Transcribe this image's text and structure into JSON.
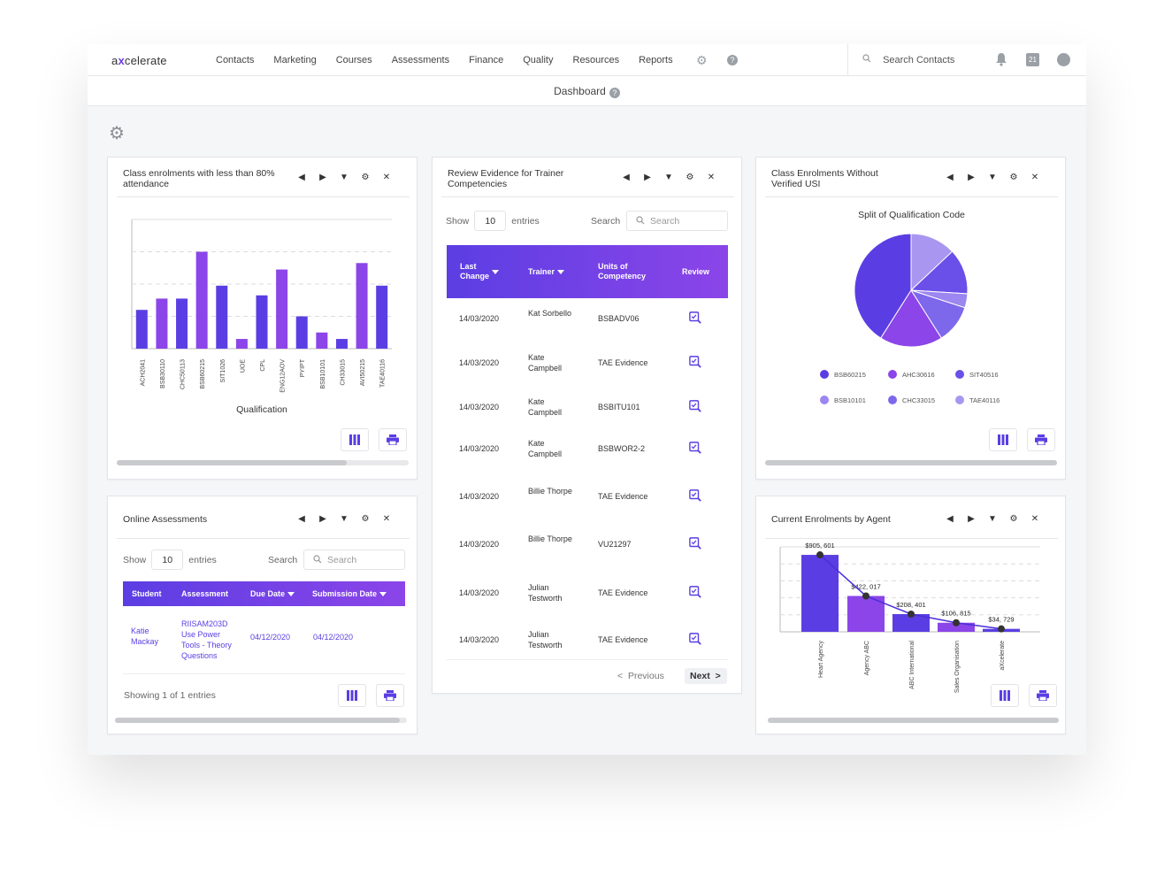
{
  "brand": {
    "logo_pre": "a",
    "logo_x": "x",
    "logo_post": "celerate"
  },
  "nav": [
    "Contacts",
    "Marketing",
    "Courses",
    "Assessments",
    "Finance",
    "Quality",
    "Resources",
    "Reports"
  ],
  "top_search_placeholder": "Search Contacts",
  "calendar_day": "21",
  "page_title": "Dashboard",
  "colors": {
    "accent": "#5b3ee3",
    "accent2": "#8b45e8",
    "bg": "#f5f6f8"
  },
  "widgets": {
    "attendance": {
      "title": "Class enrolments with less than 80% attendance",
      "xlabel": "Qualification"
    },
    "trainer": {
      "title": "Review Evidence for Trainer Competencies",
      "show_label": "Show",
      "entries_value": "10",
      "entries_label": "entries",
      "search_label": "Search",
      "search_placeholder": "Search",
      "headers": {
        "last_change": "Last Change",
        "trainer": "Trainer",
        "units": "Units of Competency",
        "review": "Review"
      },
      "rows": [
        {
          "date": "14/03/2020",
          "trainer": "Kat Sorbello",
          "unit": "BSBADV06"
        },
        {
          "date": "14/03/2020",
          "trainer": "Kate Campbell",
          "unit": "TAE Evidence"
        },
        {
          "date": "14/03/2020",
          "trainer": "Kate Campbell",
          "unit": "BSBITU101"
        },
        {
          "date": "14/03/2020",
          "trainer": "Kate Campbell",
          "unit": "BSBWOR2-2"
        },
        {
          "date": "14/03/2020",
          "trainer": "Billie Thorpe",
          "unit": "TAE Evidence"
        },
        {
          "date": "14/03/2020",
          "trainer": "Billie Thorpe",
          "unit": "VU21297"
        },
        {
          "date": "14/03/2020",
          "trainer": "Julian Testworth",
          "unit": "TAE Evidence"
        },
        {
          "date": "14/03/2020",
          "trainer": "Julian Testworth",
          "unit": "TAE Evidence"
        }
      ],
      "prev_label": "Previous",
      "next_label": "Next"
    },
    "usi": {
      "title": "Class Enrolments Without Verified USI",
      "chart_title": "Split of Qualification Code"
    },
    "online": {
      "title": "Online Assessments",
      "show_label": "Show",
      "entries_value": "10",
      "entries_label": "entries",
      "search_label": "Search",
      "search_placeholder": "Search",
      "headers": {
        "student": "Student",
        "assessment": "Assessment",
        "due": "Due Date",
        "submission": "Submission Date"
      },
      "row": {
        "student": "Katie Mackay",
        "assessment": "RIISAM203D Use Power Tools - Theory Questions",
        "due": "04/12/2020",
        "submission": "04/12/2020"
      },
      "footer": "Showing 1 of 1 entries"
    },
    "agent": {
      "title": "Current Enrolments by Agent"
    }
  },
  "chart_data": [
    {
      "type": "bar",
      "title": "",
      "xlabel": "Qualification",
      "ylabel": "",
      "categories": [
        "ACH2041",
        "BSB30110",
        "CHC50113",
        "BSB60215",
        "SIT1026",
        "UOE",
        "CPL",
        "ENG12AOV",
        "PYIPT",
        "BSB10101",
        "CH33015",
        "AVI50215",
        "TAE40116"
      ],
      "values": [
        12,
        15.5,
        15.5,
        30,
        19.5,
        3,
        16.5,
        24.5,
        10,
        5,
        3,
        26.5,
        19.5
      ],
      "ylim": [
        0,
        40
      ],
      "grid": true
    },
    {
      "type": "pie",
      "title": "Split of Qualification Code",
      "labels": [
        "BSB60215",
        "AHC30616",
        "SIT40516",
        "BSB10101",
        "CHC33015",
        "TAE40116"
      ],
      "values": [
        41,
        18,
        13,
        4,
        11,
        13
      ],
      "colors": [
        "#5b3ee3",
        "#8b45e8",
        "#6a4fe8",
        "#9c86ef",
        "#7d68ec",
        "#a996f0"
      ]
    },
    {
      "type": "bar",
      "title": "",
      "categories": [
        "Heart Agency",
        "Agency ABC",
        "ABC International",
        "Sales Organisation",
        "aXcelerate"
      ],
      "values": [
        905601,
        422017,
        208401,
        106815,
        34729
      ],
      "data_labels": [
        "$905, 601",
        "$422, 017",
        "$208, 401",
        "$106, 815",
        "$34, 729"
      ],
      "overlay_line": true,
      "ylim": [
        0,
        1000000
      ],
      "grid": true
    }
  ]
}
